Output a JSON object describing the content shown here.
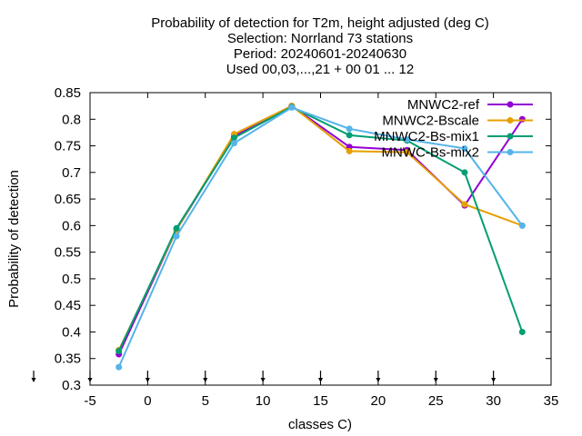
{
  "chart_data": {
    "type": "line",
    "title_lines": [
      "Probability of detection  for T2m, height adjusted (deg C)",
      "Selection: Norrland     73 stations",
      "Period: 20240601-20240630",
      "Used 00,03,...,21 + 00 01 ... 12"
    ],
    "xlabel": "classes C)",
    "ylabel": "Probability of detection",
    "xlim": [
      -5,
      35
    ],
    "ylim": [
      0.3,
      0.85
    ],
    "xticks": [
      -5,
      0,
      5,
      10,
      15,
      20,
      25,
      30,
      35
    ],
    "yticks": [
      0.3,
      0.35,
      0.4,
      0.45,
      0.5,
      0.55,
      0.6,
      0.65,
      0.7,
      0.75,
      0.8,
      0.85
    ],
    "xtick_labels": [
      "-5",
      "0",
      "5",
      "10",
      "15",
      "20",
      "25",
      "30",
      "35"
    ],
    "ytick_labels": [
      "0.3",
      "0.35",
      "0.4",
      "0.45",
      "0.5",
      "0.55",
      "0.6",
      "0.65",
      "0.7",
      "0.75",
      "0.8",
      "0.85"
    ],
    "arrow_markers_x": [
      -5,
      -2.5,
      0,
      2.5,
      5,
      7.5,
      10,
      12.5,
      15,
      17.5,
      20,
      22.5,
      25,
      27.5,
      30,
      32.5
    ],
    "grid": false,
    "legend_position": "top-right",
    "x": [
      -2.5,
      2.5,
      7.5,
      12.5,
      17.5,
      22.5,
      27.5,
      32.5
    ],
    "series": [
      {
        "name": "MNWC2-ref",
        "color": "#9400d3",
        "values": [
          0.358,
          0.592,
          0.768,
          0.825,
          0.748,
          0.742,
          0.638,
          0.8
        ]
      },
      {
        "name": "MNWC2-Bscale",
        "color": "#e69f00",
        "values": [
          0.366,
          0.592,
          0.772,
          0.825,
          0.74,
          0.738,
          0.64,
          0.6
        ]
      },
      {
        "name": "MNWC2-Bs-mix1",
        "color": "#009e73",
        "values": [
          0.364,
          0.595,
          0.765,
          0.823,
          0.77,
          0.76,
          0.7,
          0.4
        ]
      },
      {
        "name": "MNWC-Bs-mix2",
        "color": "#56b4e9",
        "values": [
          0.334,
          0.58,
          0.755,
          0.822,
          0.782,
          0.762,
          0.745,
          0.6
        ]
      }
    ]
  }
}
